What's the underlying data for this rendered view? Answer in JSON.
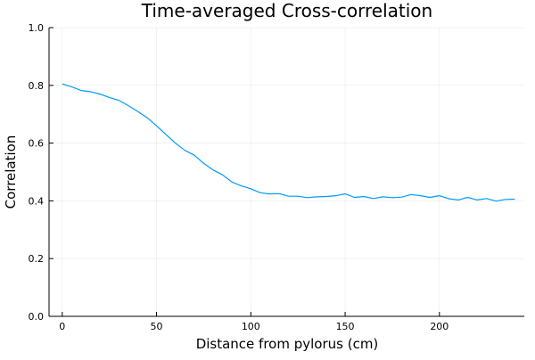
{
  "chart_data": {
    "type": "line",
    "title": "Time-averaged Cross-correlation",
    "xlabel": "Distance from pylorus (cm)",
    "ylabel": "Correlation",
    "xlim": [
      -7,
      245
    ],
    "ylim": [
      0,
      1
    ],
    "xticks": [
      0,
      50,
      100,
      150,
      200
    ],
    "yticks": [
      0.0,
      0.2,
      0.4,
      0.6,
      0.8,
      1.0
    ],
    "xtick_labels": [
      "0",
      "50",
      "100",
      "150",
      "200"
    ],
    "ytick_labels": [
      "0.0",
      "0.2",
      "0.4",
      "0.6",
      "0.8",
      "1.0"
    ],
    "grid": true,
    "legend": "none",
    "series": [
      {
        "name": "y1",
        "color": "#009af9",
        "x": [
          0,
          5,
          10,
          15,
          20,
          25,
          30,
          35,
          40,
          45,
          50,
          55,
          60,
          65,
          70,
          75,
          80,
          85,
          90,
          95,
          100,
          105,
          110,
          115,
          120,
          125,
          130,
          135,
          140,
          145,
          150,
          155,
          160,
          165,
          170,
          175,
          180,
          185,
          190,
          195,
          200,
          205,
          210,
          215,
          220,
          225,
          230,
          235,
          240
        ],
        "y": [
          0.805,
          0.795,
          0.782,
          0.778,
          0.77,
          0.758,
          0.748,
          0.73,
          0.71,
          0.688,
          0.66,
          0.63,
          0.6,
          0.575,
          0.558,
          0.53,
          0.507,
          0.49,
          0.465,
          0.452,
          0.442,
          0.428,
          0.424,
          0.425,
          0.416,
          0.416,
          0.411,
          0.414,
          0.415,
          0.418,
          0.424,
          0.412,
          0.415,
          0.408,
          0.414,
          0.411,
          0.413,
          0.422,
          0.418,
          0.412,
          0.418,
          0.407,
          0.403,
          0.412,
          0.403,
          0.408,
          0.399,
          0.405,
          0.406
        ]
      }
    ]
  }
}
